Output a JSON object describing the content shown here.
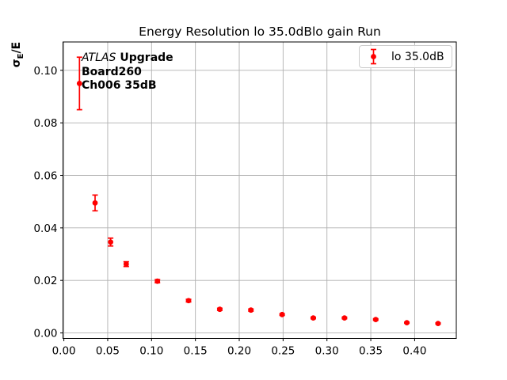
{
  "window": {
    "background": "#ffffff"
  },
  "chart_data": {
    "type": "scatter",
    "subtype": "errorbar",
    "title": "Energy Resolution lo 35.0dBlo gain Run",
    "xlabel": "Input Current [mA]",
    "ylabel": "σE/E",
    "ylabel_parts": {
      "sigma": "σ",
      "subscript": "E",
      "rest": "/E"
    },
    "xlim": [
      -0.001,
      0.4475
    ],
    "ylim": [
      -0.0021,
      0.1108
    ],
    "xticks": [
      0.0,
      0.05,
      0.1,
      0.15,
      0.2,
      0.25,
      0.3,
      0.35,
      0.4
    ],
    "xtick_labels": [
      "0.00",
      "0.05",
      "0.10",
      "0.15",
      "0.20",
      "0.25",
      "0.30",
      "0.35",
      "0.40"
    ],
    "yticks": [
      0.0,
      0.02,
      0.04,
      0.06,
      0.08,
      0.1
    ],
    "ytick_labels": [
      "0.00",
      "0.02",
      "0.04",
      "0.06",
      "0.08",
      "0.10"
    ],
    "grid": true,
    "grid_color": "#b0b0b0",
    "frame_color": "#000000",
    "legend_position": "upper-right",
    "series": [
      {
        "name": "lo 35.0dB",
        "color": "#ff0000",
        "marker": "circle",
        "x": [
          0.0178,
          0.0356,
          0.0533,
          0.0711,
          0.1067,
          0.1422,
          0.1778,
          0.2133,
          0.2489,
          0.2844,
          0.32,
          0.3556,
          0.3911,
          0.4267
        ],
        "y": [
          0.095,
          0.0495,
          0.0346,
          0.0262,
          0.0197,
          0.0123,
          0.009,
          0.0087,
          0.007,
          0.0057,
          0.0057,
          0.0051,
          0.0039,
          0.0036
        ],
        "yerr": [
          0.01,
          0.003,
          0.0015,
          0.0009,
          0.0006,
          0.0005,
          0.0004,
          0.0004,
          0.0003,
          0.0003,
          0.0003,
          0.0003,
          0.0002,
          0.0002
        ]
      }
    ]
  },
  "annotation": {
    "line1_italic": "ATLAS",
    "line1_bold": "Upgrade",
    "line2": "Board260",
    "line3": "Ch006 35dB"
  },
  "legend": {
    "entries": [
      {
        "label": "lo 35.0dB",
        "marker": "errorbar-point",
        "color": "#ff0000"
      }
    ]
  }
}
